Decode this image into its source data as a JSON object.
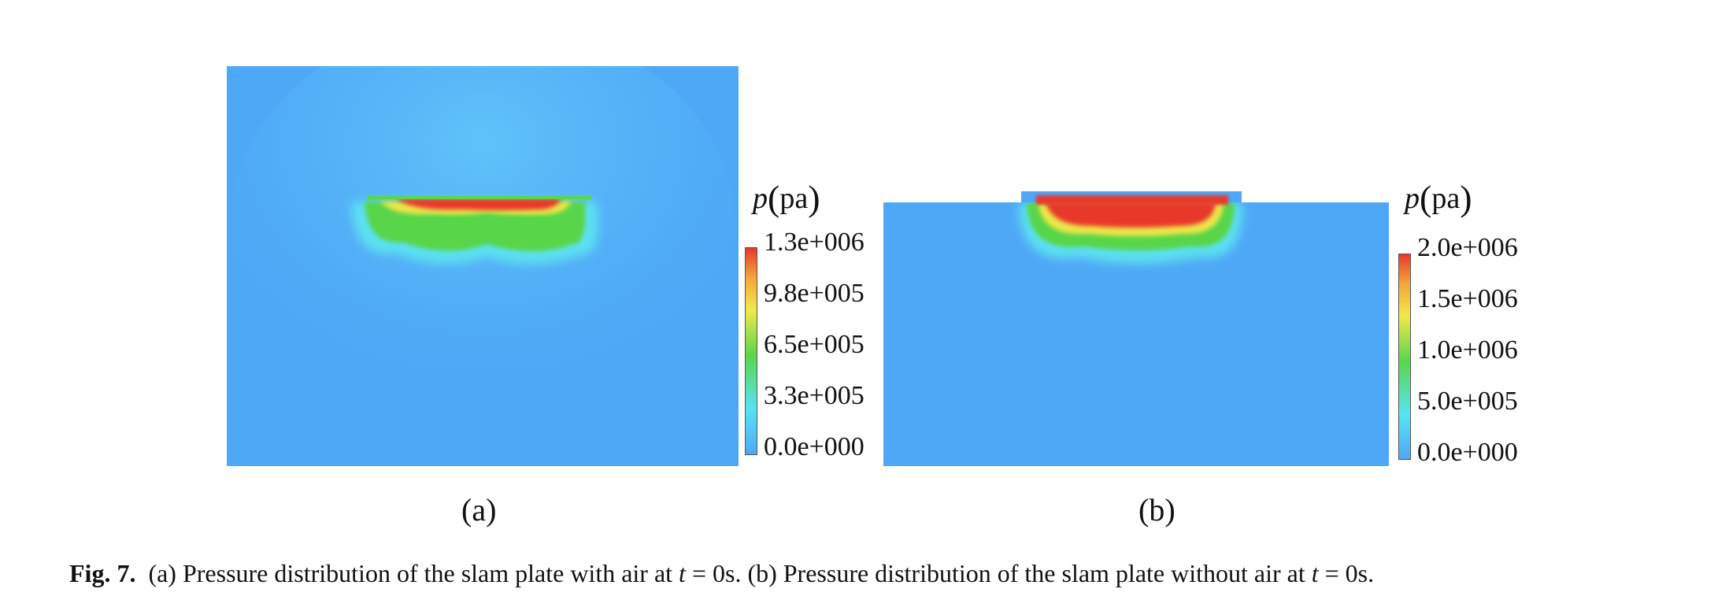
{
  "panels": [
    {
      "legend_symbol": "p",
      "legend_unit": "pa",
      "colorbar_ticks": [
        "1.3e+006",
        "9.8e+005",
        "6.5e+005",
        "3.3e+005",
        "0.0e+000"
      ],
      "sublabel": "(a)"
    },
    {
      "legend_symbol": "p",
      "legend_unit": "pa",
      "colorbar_ticks": [
        "2.0e+006",
        "1.5e+006",
        "1.0e+006",
        "5.0e+005",
        "0.0e+000"
      ],
      "sublabel": "(b)"
    }
  ],
  "caption": {
    "label": "Fig. 7.",
    "text_1": "(a) Pressure distribution of the slam plate with air at ",
    "var_1": "t",
    "text_2": " = 0s. (b) Pressure distribution of the slam plate without air at ",
    "var_2": "t",
    "text_3": " = 0s."
  },
  "colors": {
    "background_fluid": "#4fa8f6",
    "high": "#e8382a",
    "mid_high": "#f1e94a",
    "mid": "#5bd64a",
    "low": "#56e4f4",
    "lowest": "#4fa8f6"
  }
}
